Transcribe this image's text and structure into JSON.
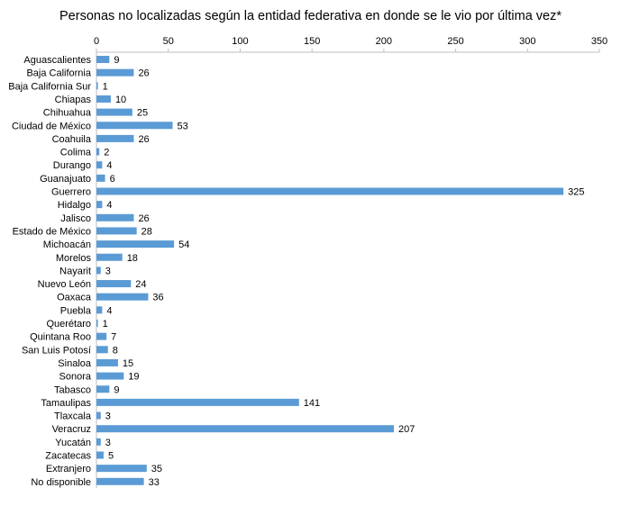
{
  "chart_data": {
    "type": "bar",
    "orientation": "horizontal",
    "title": "Personas no localizadas según la entidad federativa en donde se le vio por última vez*",
    "xlabel": "",
    "ylabel": "",
    "xlim": [
      0,
      350
    ],
    "xticks": [
      0,
      50,
      100,
      150,
      200,
      250,
      300,
      350
    ],
    "x_axis_position": "top",
    "grid": false,
    "legend": "none",
    "bar_color": "#5B9BD5",
    "categories": [
      "Aguascalientes",
      "Baja California",
      "Baja California Sur",
      "Chiapas",
      "Chihuahua",
      "Ciudad de México",
      "Coahuila",
      "Colima",
      "Durango",
      "Guanajuato",
      "Guerrero",
      "Hidalgo",
      "Jalisco",
      "Estado de México",
      "Michoacán",
      "Morelos",
      "Nayarit",
      "Nuevo León",
      "Oaxaca",
      "Puebla",
      "Querétaro",
      "Quintana Roo",
      "San Luis Potosí",
      "Sinaloa",
      "Sonora",
      "Tabasco",
      "Tamaulipas",
      "Tlaxcala",
      "Veracruz",
      "Yucatán",
      "Zacatecas",
      "Extranjero",
      "No disponible"
    ],
    "values": [
      9,
      26,
      1,
      10,
      25,
      53,
      26,
      2,
      4,
      6,
      325,
      4,
      26,
      28,
      54,
      18,
      3,
      24,
      36,
      4,
      1,
      7,
      8,
      15,
      19,
      9,
      141,
      3,
      207,
      3,
      5,
      35,
      33
    ]
  }
}
